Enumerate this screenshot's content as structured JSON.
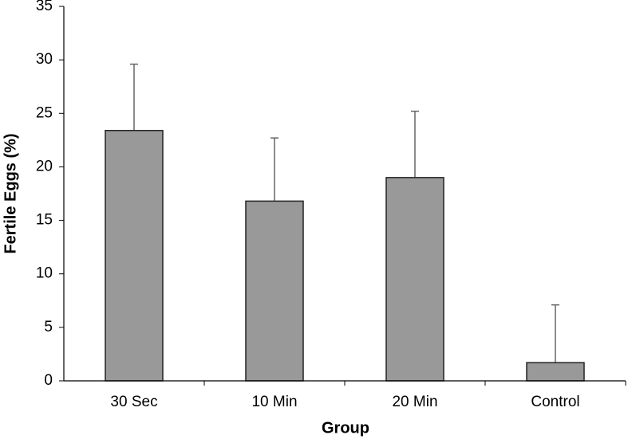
{
  "chart_data": {
    "type": "bar",
    "x_label": "Group",
    "y_label": "Fertile Eggs (%)",
    "categories": [
      "30 Sec",
      "10 Min",
      "20 Min",
      "Control"
    ],
    "values": [
      23.4,
      16.8,
      19.0,
      1.7
    ],
    "errors": [
      6.2,
      5.9,
      6.2,
      5.4
    ],
    "color": "#999999",
    "ylim": [
      0,
      35
    ],
    "yticks": [
      0,
      5,
      10,
      15,
      20,
      25,
      30,
      35
    ],
    "grid": false
  }
}
